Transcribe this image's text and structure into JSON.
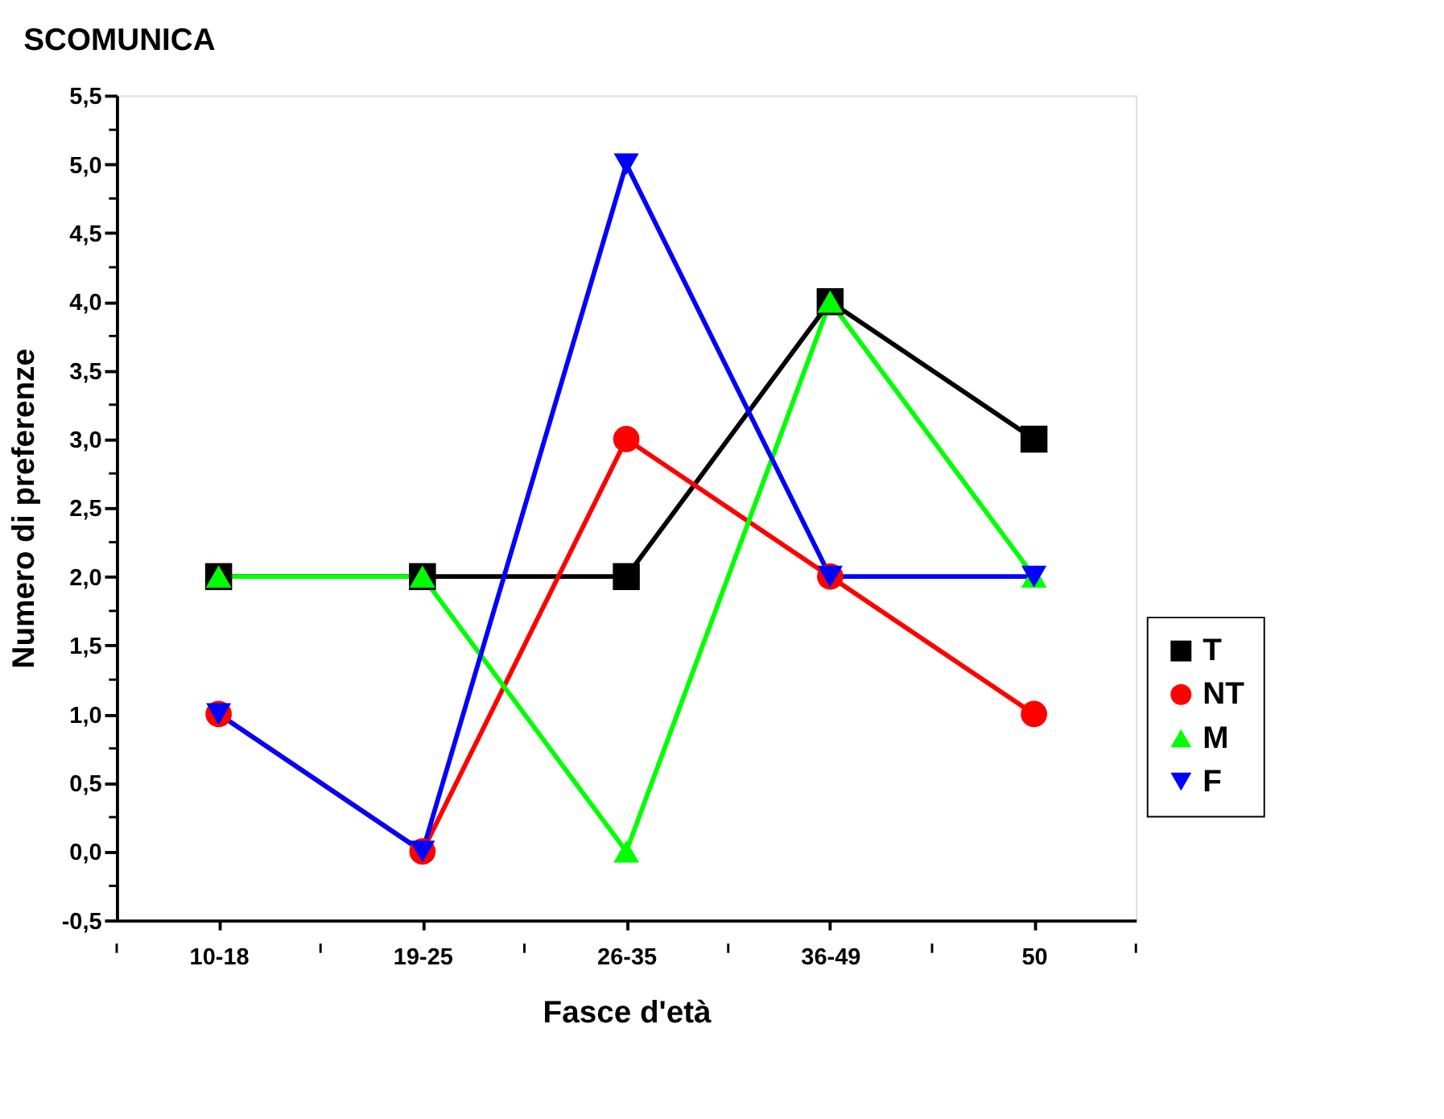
{
  "chart_data": {
    "type": "line",
    "title": "SCOMUNICA",
    "xlabel": "Fasce d'età",
    "ylabel": "Numero di preferenze",
    "categories": [
      "10-18",
      "19-25",
      "26-35",
      "36-49",
      "50"
    ],
    "series": [
      {
        "name": "T",
        "color": "#000000",
        "marker": "square",
        "values": [
          2,
          2,
          2,
          4,
          3
        ]
      },
      {
        "name": "NT",
        "color": "#ff0000",
        "marker": "circle",
        "values": [
          1,
          0,
          3,
          2,
          1
        ]
      },
      {
        "name": "M",
        "color": "#00ff00",
        "marker": "triangle",
        "values": [
          2,
          2,
          0,
          4,
          2
        ]
      },
      {
        "name": "F",
        "color": "#0000ff",
        "marker": "triangle-down",
        "values": [
          1,
          0,
          5,
          2,
          2
        ]
      }
    ],
    "ylim": [
      -0.5,
      5.5
    ],
    "yticks": [
      {
        "value": -0.5,
        "label": "-0,5"
      },
      {
        "value": 0,
        "label": "0,0"
      },
      {
        "value": 0.5,
        "label": "0,5"
      },
      {
        "value": 1,
        "label": "1,0"
      },
      {
        "value": 1.5,
        "label": "1,5"
      },
      {
        "value": 2,
        "label": "2,0"
      },
      {
        "value": 2.5,
        "label": "2,5"
      },
      {
        "value": 3,
        "label": "3,0"
      },
      {
        "value": 3.5,
        "label": "3,5"
      },
      {
        "value": 4,
        "label": "4,0"
      },
      {
        "value": 4.5,
        "label": "4,5"
      },
      {
        "value": 5,
        "label": "5,0"
      },
      {
        "value": 5.5,
        "label": "5,5"
      }
    ],
    "grid": false,
    "legend": "right",
    "line_style": "solid"
  }
}
